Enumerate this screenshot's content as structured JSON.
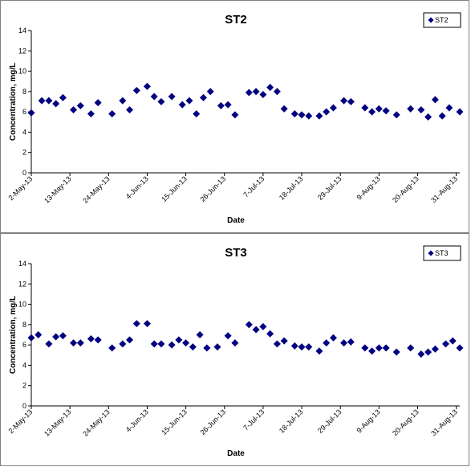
{
  "chart_data": [
    {
      "type": "scatter",
      "title": "ST2",
      "xlabel": "Date",
      "ylabel": "Concentration, mg/L",
      "ylim": [
        0,
        14
      ],
      "yticks": [
        "0",
        "2",
        "4",
        "6",
        "8",
        "10",
        "12",
        "14"
      ],
      "xlim": [
        "2013-05-02",
        "2013-09-01"
      ],
      "xticks": [
        {
          "label": "2-May-13",
          "date": "2013-05-02"
        },
        {
          "label": "13-May-13",
          "date": "2013-05-13"
        },
        {
          "label": "24-May-13",
          "date": "2013-05-24"
        },
        {
          "label": "4-Jun-13",
          "date": "2013-06-04"
        },
        {
          "label": "15-Jun-13",
          "date": "2013-06-15"
        },
        {
          "label": "26-Jun-13",
          "date": "2013-06-26"
        },
        {
          "label": "7-Jul-13",
          "date": "2013-07-07"
        },
        {
          "label": "18-Jul-13",
          "date": "2013-07-18"
        },
        {
          "label": "29-Jul-13",
          "date": "2013-07-29"
        },
        {
          "label": "9-Aug-13",
          "date": "2013-08-09"
        },
        {
          "label": "20-Aug-13",
          "date": "2013-08-20"
        },
        {
          "label": "31-Aug-13",
          "date": "2013-08-31"
        }
      ],
      "grid": false,
      "legend": "top-right",
      "marker_color": "#000080",
      "series": [
        {
          "name": "ST2",
          "x": [
            "2013-05-02",
            "2013-05-05",
            "2013-05-07",
            "2013-05-09",
            "2013-05-11",
            "2013-05-14",
            "2013-05-16",
            "2013-05-19",
            "2013-05-21",
            "2013-05-25",
            "2013-05-28",
            "2013-05-30",
            "2013-06-01",
            "2013-06-04",
            "2013-06-06",
            "2013-06-08",
            "2013-06-11",
            "2013-06-14",
            "2013-06-16",
            "2013-06-18",
            "2013-06-20",
            "2013-06-22",
            "2013-06-25",
            "2013-06-27",
            "2013-06-29",
            "2013-07-03",
            "2013-07-05",
            "2013-07-07",
            "2013-07-09",
            "2013-07-11",
            "2013-07-13",
            "2013-07-16",
            "2013-07-18",
            "2013-07-20",
            "2013-07-23",
            "2013-07-25",
            "2013-07-27",
            "2013-07-30",
            "2013-08-01",
            "2013-08-05",
            "2013-08-07",
            "2013-08-09",
            "2013-08-11",
            "2013-08-14",
            "2013-08-18",
            "2013-08-21",
            "2013-08-23",
            "2013-08-25",
            "2013-08-27",
            "2013-08-29",
            "2013-09-01"
          ],
          "y": [
            5.9,
            7.1,
            7.1,
            6.8,
            7.4,
            6.2,
            6.6,
            5.8,
            6.9,
            5.8,
            7.1,
            6.2,
            8.1,
            8.5,
            7.5,
            7.0,
            7.5,
            6.7,
            7.1,
            5.8,
            7.4,
            8.0,
            6.6,
            6.7,
            5.7,
            7.9,
            8.0,
            7.7,
            8.4,
            8.0,
            6.3,
            5.8,
            5.7,
            5.6,
            5.6,
            6.0,
            6.4,
            7.1,
            7.0,
            6.4,
            6.0,
            6.3,
            6.1,
            5.7,
            6.3,
            6.2,
            5.5,
            7.2,
            5.6,
            6.4,
            6.0
          ]
        }
      ]
    },
    {
      "type": "scatter",
      "title": "ST3",
      "xlabel": "Date",
      "ylabel": "Concentration, mg/L",
      "ylim": [
        0,
        14
      ],
      "yticks": [
        "0",
        "2",
        "4",
        "6",
        "8",
        "10",
        "12",
        "14"
      ],
      "xlim": [
        "2013-05-02",
        "2013-09-01"
      ],
      "xticks": [
        {
          "label": "2-May-13",
          "date": "2013-05-02"
        },
        {
          "label": "13-May-13",
          "date": "2013-05-13"
        },
        {
          "label": "24-May-13",
          "date": "2013-05-24"
        },
        {
          "label": "4-Jun-13",
          "date": "2013-06-04"
        },
        {
          "label": "15-Jun-13",
          "date": "2013-06-15"
        },
        {
          "label": "26-Jun-13",
          "date": "2013-06-26"
        },
        {
          "label": "7-Jul-13",
          "date": "2013-07-07"
        },
        {
          "label": "18-Jul-13",
          "date": "2013-07-18"
        },
        {
          "label": "29-Jul-13",
          "date": "2013-07-29"
        },
        {
          "label": "9-Aug-13",
          "date": "2013-08-09"
        },
        {
          "label": "20-Aug-13",
          "date": "2013-08-20"
        },
        {
          "label": "31-Aug-13",
          "date": "2013-08-31"
        }
      ],
      "grid": false,
      "legend": "top-right",
      "marker_color": "#000080",
      "series": [
        {
          "name": "ST3",
          "x": [
            "2013-05-02",
            "2013-05-04",
            "2013-05-07",
            "2013-05-09",
            "2013-05-11",
            "2013-05-14",
            "2013-05-16",
            "2013-05-19",
            "2013-05-21",
            "2013-05-25",
            "2013-05-28",
            "2013-05-30",
            "2013-06-01",
            "2013-06-04",
            "2013-06-06",
            "2013-06-08",
            "2013-06-11",
            "2013-06-13",
            "2013-06-15",
            "2013-06-17",
            "2013-06-19",
            "2013-06-21",
            "2013-06-24",
            "2013-06-27",
            "2013-06-29",
            "2013-07-03",
            "2013-07-05",
            "2013-07-07",
            "2013-07-09",
            "2013-07-11",
            "2013-07-13",
            "2013-07-16",
            "2013-07-18",
            "2013-07-20",
            "2013-07-23",
            "2013-07-25",
            "2013-07-27",
            "2013-07-30",
            "2013-08-01",
            "2013-08-05",
            "2013-08-07",
            "2013-08-09",
            "2013-08-11",
            "2013-08-14",
            "2013-08-18",
            "2013-08-21",
            "2013-08-23",
            "2013-08-25",
            "2013-08-28",
            "2013-08-30",
            "2013-09-01"
          ],
          "y": [
            6.7,
            7.0,
            6.1,
            6.8,
            6.9,
            6.2,
            6.2,
            6.6,
            6.5,
            5.7,
            6.1,
            6.5,
            8.1,
            8.1,
            6.1,
            6.1,
            6.0,
            6.5,
            6.2,
            5.8,
            7.0,
            5.7,
            5.8,
            6.9,
            6.2,
            8.0,
            7.5,
            7.8,
            7.1,
            6.1,
            6.4,
            5.9,
            5.8,
            5.8,
            5.4,
            6.2,
            6.7,
            6.2,
            6.3,
            5.7,
            5.4,
            5.7,
            5.7,
            5.3,
            5.7,
            5.1,
            5.3,
            5.6,
            6.1,
            6.4,
            5.7
          ]
        }
      ]
    }
  ]
}
